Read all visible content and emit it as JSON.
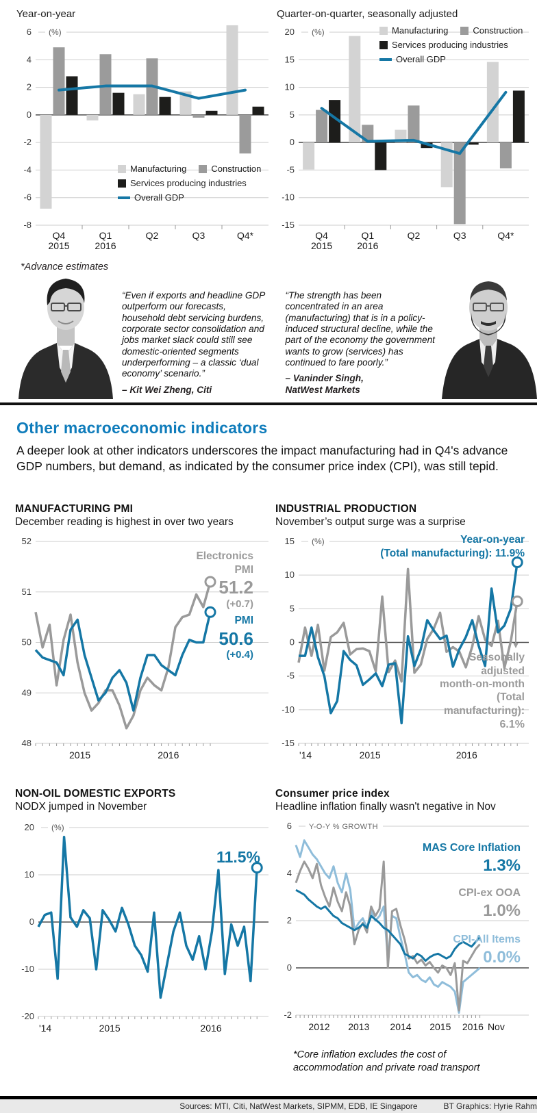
{
  "palette": {
    "blue": "#1577a5",
    "gray": "#9a9a9a",
    "light_gray_bar": "#d3d3d3",
    "mid_gray_bar": "#9b9b9b",
    "black_bar": "#1d1d1b",
    "light_blue": "#8fbdda",
    "heading_blue": "#0f7cbb"
  },
  "gdp_note": "*Advance estimates",
  "chart_data": [
    {
      "id": "gdp-left",
      "type": "bar",
      "title": "Year-on-year",
      "unit": "(%)",
      "ymin": -8,
      "ymax": 6,
      "ystep": 2,
      "categories": [
        [
          "Q4",
          "2015"
        ],
        [
          "Q1",
          "2016"
        ],
        [
          "Q2"
        ],
        [
          "Q3"
        ],
        [
          "Q4*"
        ]
      ],
      "series": [
        {
          "name": "Manufacturing",
          "color": "#d3d3d3",
          "values": [
            -6.8,
            -0.4,
            1.5,
            1.7,
            6.5
          ]
        },
        {
          "name": "Construction",
          "color": "#9b9b9b",
          "values": [
            4.9,
            4.4,
            4.1,
            -0.2,
            -2.8
          ]
        },
        {
          "name": "Services producing industries",
          "color": "#1d1d1b",
          "values": [
            2.8,
            1.6,
            1.3,
            0.3,
            0.6
          ]
        },
        {
          "name": "Overall GDP",
          "color": "#1577a5",
          "type": "line",
          "values": [
            1.8,
            2.1,
            2.1,
            1.2,
            1.8
          ]
        }
      ]
    },
    {
      "id": "gdp-right",
      "type": "bar",
      "title": "Quarter-on-quarter, seasonally adjusted",
      "unit": "(%)",
      "ymin": -15,
      "ymax": 20,
      "ystep": 5,
      "categories": [
        [
          "Q4",
          "2015"
        ],
        [
          "Q1",
          "2016"
        ],
        [
          "Q2"
        ],
        [
          "Q3"
        ],
        [
          "Q4*"
        ]
      ],
      "series": [
        {
          "name": "Manufacturing",
          "color": "#d3d3d3",
          "values": [
            -4.9,
            19.3,
            2.3,
            -8.1,
            14.6
          ]
        },
        {
          "name": "Construction",
          "color": "#9b9b9b",
          "values": [
            5.9,
            3.2,
            6.7,
            -14.8,
            -4.7
          ]
        },
        {
          "name": "Services producing industries",
          "color": "#1d1d1b",
          "values": [
            7.7,
            -5.0,
            -1.0,
            -0.4,
            9.4
          ]
        },
        {
          "name": "Overall GDP",
          "color": "#1577a5",
          "type": "line",
          "values": [
            6.2,
            0.2,
            0.4,
            -2.0,
            9.1
          ]
        }
      ]
    },
    {
      "id": "pmi",
      "type": "line",
      "title": "MANUFACTURING PMI",
      "subtitle": "December reading is highest in over two years",
      "ymin": 48,
      "ymax": 52,
      "ystep": 1,
      "x_labels": [
        {
          "t": "2015",
          "f": 0.19
        },
        {
          "t": "2016",
          "f": 0.57
        }
      ],
      "series": [
        {
          "name": "Electronics PMI",
          "color": "#9a9a9a",
          "w": 3.5,
          "dot": true,
          "values": [
            50.6,
            49.9,
            50.35,
            49.15,
            50.05,
            50.55,
            49.6,
            49.0,
            48.65,
            48.8,
            49.05,
            49.05,
            48.75,
            48.3,
            48.55,
            49.05,
            49.3,
            49.15,
            49.05,
            49.5,
            50.3,
            50.5,
            50.55,
            50.95,
            50.7,
            51.2
          ]
        },
        {
          "name": "PMI",
          "color": "#1577a5",
          "w": 3.5,
          "dot": true,
          "values": [
            49.85,
            49.7,
            49.65,
            49.6,
            49.35,
            50.25,
            50.45,
            49.75,
            49.3,
            48.85,
            49.0,
            49.3,
            49.45,
            49.2,
            48.65,
            49.3,
            49.75,
            49.75,
            49.55,
            49.45,
            49.35,
            49.75,
            50.05,
            50.0,
            50.0,
            50.6
          ]
        }
      ],
      "ann": [
        {
          "label": "Electronics\nPMI",
          "value": "51.2",
          "delta": "(+0.7)"
        },
        {
          "label": "PMI",
          "value": "50.6",
          "delta": "(+0.4)"
        }
      ]
    },
    {
      "id": "ip",
      "type": "line",
      "title": "INDUSTRIAL PRODUCTION",
      "subtitle": "November’s output surge was a surprise",
      "unit": "(%)",
      "ymin": -15,
      "ymax": 15,
      "ystep": 5,
      "x_labels": [
        {
          "t": "'14",
          "f": 0.03
        },
        {
          "t": "2015",
          "f": 0.31
        },
        {
          "t": "2016",
          "f": 0.73
        }
      ],
      "series": [
        {
          "name": "Seasonally adjusted month-on-month (Total manufacturing)",
          "color": "#9a9a9a",
          "w": 3.5,
          "dot": true,
          "values": [
            -3,
            2.2,
            -2,
            2.6,
            -4.2,
            0.8,
            1.5,
            2.9,
            -1.8,
            -1,
            -0.9,
            -1.3,
            -4.3,
            6.8,
            -4.4,
            -2.7,
            -5.8,
            10.9,
            -4.5,
            -3.3,
            0.5,
            2,
            4.4,
            -1.4,
            -0.7,
            -1.4,
            -3.7,
            -0.6,
            3.9,
            0.4,
            -0.5,
            3.2,
            -3.8,
            0.2,
            6.1
          ]
        },
        {
          "name": "Year-on-year (Total manufacturing)",
          "color": "#1577a5",
          "w": 3.5,
          "dot": true,
          "values": [
            -2,
            -2,
            2.2,
            -2.2,
            -5,
            -10.5,
            -8.7,
            -1.3,
            -2.6,
            -3.4,
            -6.3,
            -5.5,
            -4.6,
            -6.5,
            -3.3,
            -3.1,
            -12,
            0.9,
            -3.5,
            -1,
            3.3,
            1.8,
            0.5,
            1,
            -3.6,
            -1,
            0.8,
            3.3,
            -0.5,
            -3.5,
            8,
            1.5,
            2.5,
            5,
            11.9
          ]
        }
      ],
      "ann": {
        "yoy": "Year-on-year\n(Total manufacturing): 11.9%",
        "mom_label": "Seasonally\nadjusted\nmonth-on-month\n(Total\nmanufacturing):",
        "mom_value": "6.1%"
      }
    },
    {
      "id": "nodx",
      "type": "line",
      "title": "NON-OIL DOMESTIC EXPORTS",
      "subtitle": "NODX jumped in November",
      "unit": "(%)",
      "ymin": -20,
      "ymax": 20,
      "ystep": 10,
      "x_labels": [
        {
          "t": "'14",
          "f": 0.03
        },
        {
          "t": "2015",
          "f": 0.31
        },
        {
          "t": "2016",
          "f": 0.75
        }
      ],
      "series": [
        {
          "name": "NODX year-on-year growth",
          "color": "#1577a5",
          "w": 3.5,
          "dot": true,
          "values": [
            -1,
            1.5,
            2,
            -12,
            18,
            1,
            -1,
            2.5,
            0.8,
            -10,
            2.5,
            0.5,
            -2,
            3,
            -0.5,
            -5,
            -7,
            -10.5,
            2,
            -16,
            -9,
            -2,
            2,
            -5,
            -8,
            -3,
            -10,
            -2,
            11,
            -11,
            -0.5,
            -5,
            -1,
            -12.5,
            11.5
          ]
        }
      ],
      "ann_value": "11.5%"
    },
    {
      "id": "cpi",
      "type": "line",
      "title": "Consumer price index",
      "subtitle": "Headline inflation finally wasn't negative in Nov",
      "unit": "Y-O-Y % GROWTH",
      "unit_caps": true,
      "ymin": -2,
      "ymax": 6,
      "ystep": 2,
      "x_labels": [
        {
          "t": "2012",
          "f": 0.1
        },
        {
          "t": "2013",
          "f": 0.27
        },
        {
          "t": "2014",
          "f": 0.45
        },
        {
          "t": "2015",
          "f": 0.62
        },
        {
          "t": "2016",
          "f": 0.76
        },
        {
          "t": "Nov",
          "f": 0.86
        }
      ],
      "series": [
        {
          "name": "CPI-All Items",
          "color": "#8fbdda",
          "w": 3,
          "values": [
            5.2,
            4.7,
            5.4,
            5.1,
            4.8,
            4.6,
            4.3,
            4.0,
            3.8,
            4.3,
            3.6,
            3.2,
            4.0,
            3.3,
            1.6,
            1.9,
            2.1,
            1.7,
            2.4,
            2.0,
            2.2,
            2.6,
            0.4,
            2.2,
            2.1,
            1.3,
            0.6,
            -0.2,
            -0.4,
            -0.3,
            -0.5,
            -0.6,
            -0.4,
            -0.7,
            -0.8,
            -0.6,
            -0.7,
            -0.8,
            -1.0,
            -1.9,
            -0.6,
            -0.45,
            -0.3,
            -0.15,
            0.0
          ]
        },
        {
          "name": "CPI-ex OOA",
          "color": "#9a9a9a",
          "w": 3,
          "values": [
            3.6,
            4.1,
            4.5,
            4.2,
            3.8,
            4.4,
            3.5,
            3.0,
            2.6,
            3.4,
            2.8,
            2.4,
            3.2,
            2.6,
            1.0,
            1.6,
            1.9,
            1.5,
            2.6,
            2.2,
            2.5,
            4.5,
            0.0,
            2.4,
            2.5,
            1.8,
            1.2,
            0.4,
            0.5,
            0.2,
            0.35,
            0.1,
            0.25,
            0.0,
            -0.2,
            0.1,
            0.0,
            -0.3,
            0.2,
            -1.8,
            0.3,
            0.2,
            0.5,
            0.8,
            1.0
          ]
        },
        {
          "name": "MAS Core Inflation",
          "color": "#1577a5",
          "w": 3,
          "values": [
            3.3,
            3.2,
            3.1,
            2.9,
            2.75,
            2.6,
            2.5,
            2.6,
            2.4,
            2.2,
            2.1,
            1.9,
            1.8,
            1.7,
            1.6,
            1.7,
            1.85,
            1.7,
            2.2,
            2.05,
            1.9,
            1.7,
            1.6,
            1.4,
            1.2,
            1.0,
            0.6,
            0.5,
            0.4,
            0.6,
            0.5,
            0.3,
            0.45,
            0.55,
            0.6,
            0.5,
            0.4,
            0.5,
            0.8,
            1.0,
            1.1,
            1.0,
            0.9,
            1.1,
            1.3
          ]
        }
      ],
      "ann": [
        {
          "label": "MAS Core Inflation",
          "value": "1.3%"
        },
        {
          "label": "CPI-ex OOA",
          "value": "1.0%"
        },
        {
          "label": "CPI-All Items",
          "value": "0.0%"
        }
      ],
      "footnote": "*Core inflation excludes the cost of\naccommodation and private road transport"
    }
  ],
  "quotes": [
    {
      "text": "“Even if exports and headline GDP outperform our forecasts, household debt servicing burdens, corporate sector consolidation and jobs market slack could still see domestic-oriented segments underperforming – a classic ‘dual economy’ scenario.”",
      "attribution": "– Kit Wei Zheng, Citi"
    },
    {
      "text": "“The strength has been concentrated in an area (manufacturing) that is in a policy-induced structural decline, while the part of the economy the government wants to grow (services) has continued to fare poorly.”",
      "attribution": "– Vaninder Singh,\nNatWest Markets"
    }
  ],
  "macro": {
    "heading": "Other macroeconomic indicators",
    "intro": "A deeper look at other indicators underscores the impact manufacturing had in Q4's advance GDP numbers, but demand, as indicated by the consumer price index (CPI), was still tepid."
  },
  "footer": {
    "sources": "Sources: MTI, Citi, NatWest Markets, SIPMM, EDB, IE Singapore",
    "credit": "BT Graphics: Hyrie Rahmat"
  }
}
